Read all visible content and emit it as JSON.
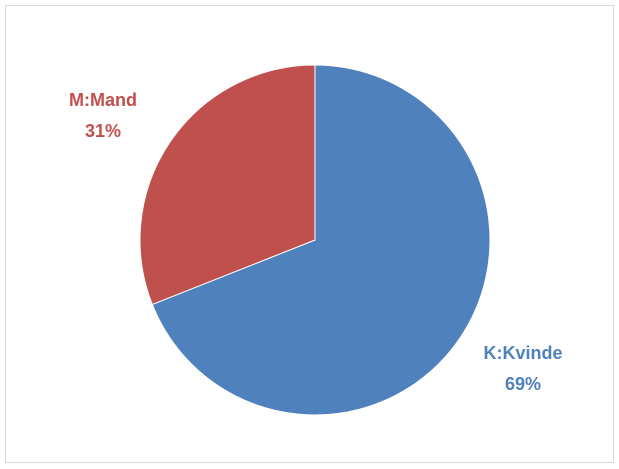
{
  "chart_data": {
    "type": "pie",
    "categories": [
      "K:Kvinde",
      "M:Mand"
    ],
    "values": [
      69,
      31
    ],
    "value_labels": [
      "69%",
      "31%"
    ],
    "colors": [
      "#4f81bd",
      "#c0504d"
    ],
    "title": "",
    "legend": "none",
    "start_position": "top",
    "direction": "clockwise"
  }
}
